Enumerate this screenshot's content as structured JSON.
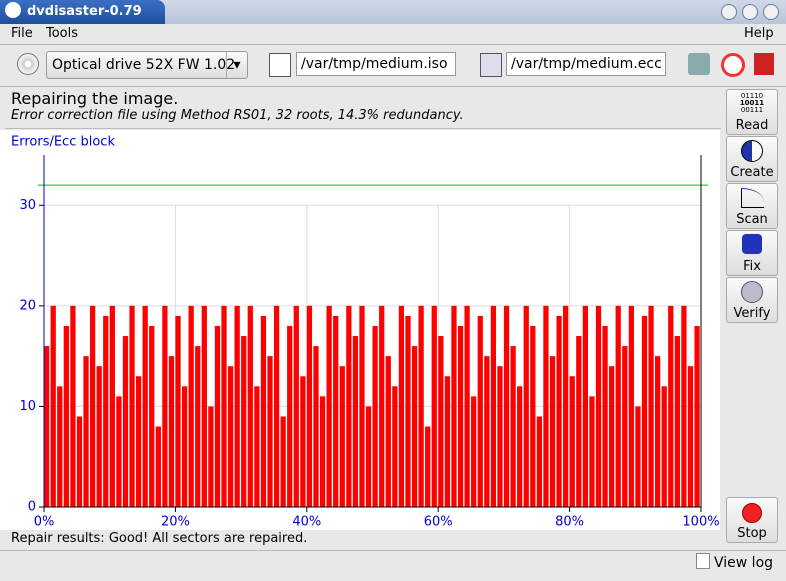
{
  "window_title": "dvdisaster-0.79",
  "menu": [
    "File",
    "Tools",
    "Help"
  ],
  "toolbar": {
    "drive": "Optical drive 52X FW 1.02",
    "image_file": "/var/tmp/medium.iso",
    "ecc_file": "/var/tmp/medium.ecc"
  },
  "header": {
    "title": "Repairing the image.",
    "subtitle": "Error correction file using Method RS01, 32 roots, 14.3% redundancy."
  },
  "sidebar": {
    "read_icon_text": [
      "01110",
      "10011",
      "00111"
    ],
    "buttons": [
      "Read",
      "Create",
      "Scan",
      "Fix",
      "Verify"
    ],
    "stop": "Stop"
  },
  "chart_data": {
    "type": "bar",
    "y_label": "Errors/Ecc block",
    "color": "#ff0000",
    "values": [
      16,
      20,
      12,
      18,
      20,
      9,
      15,
      20,
      14,
      19,
      20,
      11,
      17,
      20,
      13,
      20,
      18,
      8,
      20,
      15,
      19,
      12,
      20,
      16,
      20,
      10,
      18,
      20,
      14,
      20,
      17,
      20,
      12,
      19,
      15,
      20,
      9,
      18,
      20,
      13,
      20,
      16,
      11,
      20,
      19,
      14,
      20,
      17,
      20,
      10,
      18,
      20,
      15,
      12,
      20,
      19,
      16,
      20,
      8,
      20,
      17,
      13,
      20,
      18,
      20,
      11,
      19,
      15,
      20,
      14,
      20,
      16,
      12,
      20,
      18,
      9,
      20,
      15,
      19,
      20,
      13,
      17,
      20,
      11,
      20,
      18,
      14,
      20,
      16,
      20,
      10,
      19,
      20,
      15,
      12,
      20,
      17,
      20,
      14,
      18
    ],
    "xlim": [
      0,
      100
    ],
    "ylim": [
      0,
      35
    ],
    "xticks": [
      {
        "value": 0,
        "label": "0%"
      },
      {
        "value": 20,
        "label": "20%"
      },
      {
        "value": 40,
        "label": "40%"
      },
      {
        "value": 60,
        "label": "60%"
      },
      {
        "value": 80,
        "label": "80%"
      },
      {
        "value": 100,
        "label": "100%"
      }
    ],
    "yticks": [
      0,
      10,
      20,
      30
    ],
    "limit_line": {
      "value": 32,
      "color": "#00c000"
    },
    "grid": true
  },
  "status": "Repair results: Good! All sectors are repaired.",
  "view_log": "View log"
}
